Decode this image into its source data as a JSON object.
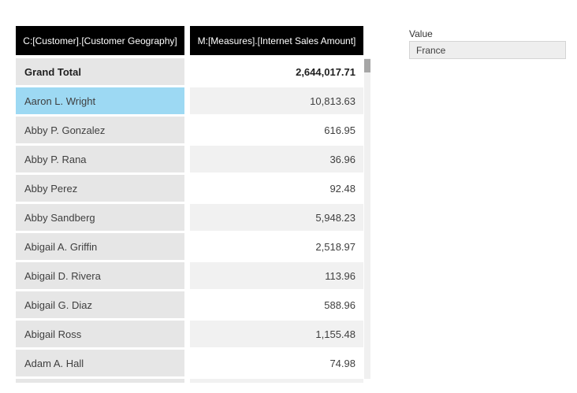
{
  "table": {
    "columns": [
      {
        "label": "C:[Customer].[Customer Geography]"
      },
      {
        "label": "M:[Measures].[Internet Sales Amount]"
      }
    ],
    "rows": [
      {
        "name": "Grand Total",
        "value": "2,644,017.71",
        "bold": true,
        "selected": false
      },
      {
        "name": "Aaron L. Wright",
        "value": "10,813.63",
        "bold": false,
        "selected": true
      },
      {
        "name": "Abby P. Gonzalez",
        "value": "616.95",
        "bold": false,
        "selected": false
      },
      {
        "name": "Abby P. Rana",
        "value": "36.96",
        "bold": false,
        "selected": false
      },
      {
        "name": "Abby Perez",
        "value": "92.48",
        "bold": false,
        "selected": false
      },
      {
        "name": "Abby Sandberg",
        "value": "5,948.23",
        "bold": false,
        "selected": false
      },
      {
        "name": "Abigail A. Griffin",
        "value": "2,518.97",
        "bold": false,
        "selected": false
      },
      {
        "name": "Abigail D. Rivera",
        "value": "113.96",
        "bold": false,
        "selected": false
      },
      {
        "name": "Abigail G. Diaz",
        "value": "588.96",
        "bold": false,
        "selected": false
      },
      {
        "name": "Abigail Ross",
        "value": "1,155.48",
        "bold": false,
        "selected": false
      },
      {
        "name": "Adam A. Hall",
        "value": "74.98",
        "bold": false,
        "selected": false
      }
    ]
  },
  "filter": {
    "label": "Value",
    "input_value": "France"
  },
  "colors": {
    "header_bg": "#000000",
    "header_text": "#ffffff",
    "row_label_bg": "#e6e6e6",
    "row_value_alt_bg": "#f1f1f1",
    "selected_row_bg": "#9dd9f3",
    "scrollbar_thumb": "#a6a6a6",
    "scrollbar_track": "#f0f0f0",
    "input_bg": "#eeeeee"
  }
}
